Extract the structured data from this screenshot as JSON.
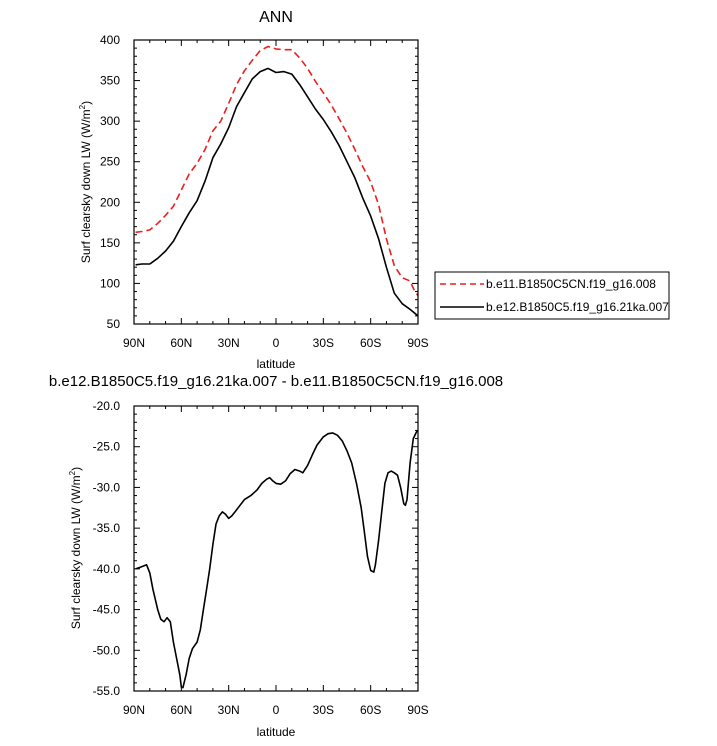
{
  "chart_data": [
    {
      "type": "line",
      "title": "ANN",
      "xlabel": "latitude",
      "ylabel": "Surf clearsky down LW (W/m",
      "ylabel_sup": "2",
      "ylabel_close": ")",
      "xlim": [
        90,
        -90
      ],
      "ylim": [
        50,
        400
      ],
      "x_ticks": [
        90,
        60,
        30,
        0,
        -30,
        -60,
        -90
      ],
      "x_tick_labels": [
        "90N",
        "60N",
        "30N",
        "0",
        "30S",
        "60S",
        "90S"
      ],
      "y_ticks": [
        50,
        100,
        150,
        200,
        250,
        300,
        350,
        400
      ],
      "y_tick_labels": [
        "50",
        "100",
        "150",
        "200",
        "250",
        "300",
        "350",
        "400"
      ],
      "legend_placement": "right-outside",
      "series": [
        {
          "name": "b.e11.B1850C5CN.f19_g16.008",
          "color": "#e8201e",
          "dash": "dashed",
          "points": [
            [
              89,
              163
            ],
            [
              85,
              164
            ],
            [
              80,
              166
            ],
            [
              75,
              174
            ],
            [
              70,
              184
            ],
            [
              65,
              195
            ],
            [
              60,
              215
            ],
            [
              55,
              235
            ],
            [
              50,
              248
            ],
            [
              45,
              265
            ],
            [
              40,
              288
            ],
            [
              35,
              300
            ],
            [
              30,
              322
            ],
            [
              25,
              345
            ],
            [
              20,
              362
            ],
            [
              15,
              375
            ],
            [
              10,
              387
            ],
            [
              5,
              392
            ],
            [
              0,
              389
            ],
            [
              -5,
              388
            ],
            [
              -10,
              388
            ],
            [
              -15,
              378
            ],
            [
              -20,
              365
            ],
            [
              -25,
              349
            ],
            [
              -30,
              335
            ],
            [
              -35,
              320
            ],
            [
              -40,
              303
            ],
            [
              -45,
              285
            ],
            [
              -50,
              265
            ],
            [
              -55,
              244
            ],
            [
              -60,
              225
            ],
            [
              -65,
              197
            ],
            [
              -70,
              155
            ],
            [
              -75,
              122
            ],
            [
              -80,
              107
            ],
            [
              -85,
              103
            ],
            [
              -88,
              90
            ],
            [
              -90,
              85
            ]
          ]
        },
        {
          "name": "b.e12.B1850C5.f19_g16.21ka.007",
          "color": "#000000",
          "dash": "solid",
          "points": [
            [
              89,
              123
            ],
            [
              85,
              124
            ],
            [
              80,
              124
            ],
            [
              75,
              131
            ],
            [
              70,
              140
            ],
            [
              65,
              152
            ],
            [
              60,
              170
            ],
            [
              55,
              187
            ],
            [
              50,
              202
            ],
            [
              45,
              226
            ],
            [
              40,
              255
            ],
            [
              35,
              272
            ],
            [
              30,
              292
            ],
            [
              25,
              318
            ],
            [
              20,
              335
            ],
            [
              15,
              352
            ],
            [
              10,
              361
            ],
            [
              5,
              365
            ],
            [
              0,
              360
            ],
            [
              -5,
              361
            ],
            [
              -10,
              358
            ],
            [
              -15,
              345
            ],
            [
              -20,
              330
            ],
            [
              -25,
              315
            ],
            [
              -30,
              302
            ],
            [
              -35,
              287
            ],
            [
              -40,
              270
            ],
            [
              -45,
              250
            ],
            [
              -50,
              230
            ],
            [
              -55,
              205
            ],
            [
              -60,
              183
            ],
            [
              -65,
              155
            ],
            [
              -70,
              120
            ],
            [
              -75,
              88
            ],
            [
              -80,
              75
            ],
            [
              -85,
              68
            ],
            [
              -90,
              60
            ]
          ]
        }
      ]
    },
    {
      "type": "line",
      "title": "b.e12.B1850C5.f19_g16.21ka.007 - b.e11.B1850C5CN.f19_g16.008",
      "xlabel": "latitude",
      "ylabel": "Surf clearsky down LW (W/m",
      "ylabel_sup": "2",
      "ylabel_close": ")",
      "xlim": [
        90,
        -90
      ],
      "ylim": [
        -55,
        -20
      ],
      "x_ticks": [
        90,
        60,
        30,
        0,
        -30,
        -60,
        -90
      ],
      "x_tick_labels": [
        "90N",
        "60N",
        "30N",
        "0",
        "30S",
        "60S",
        "90S"
      ],
      "y_ticks": [
        -55,
        -50,
        -45,
        -40,
        -35,
        -30,
        -25,
        -20
      ],
      "y_tick_labels": [
        "-55.0",
        "-50.0",
        "-45.0",
        "-40.0",
        "-35.0",
        "-30.0",
        "-25.0",
        "-20.0"
      ],
      "series": [
        {
          "color": "#000000",
          "dash": "solid",
          "points": [
            [
              89,
              -40
            ],
            [
              86,
              -39.8
            ],
            [
              82,
              -39.5
            ],
            [
              80,
              -40.5
            ],
            [
              78,
              -42.5
            ],
            [
              75,
              -45
            ],
            [
              73,
              -46.2
            ],
            [
              71,
              -46.5
            ],
            [
              69,
              -46
            ],
            [
              67,
              -46.5
            ],
            [
              65,
              -49
            ],
            [
              63,
              -51
            ],
            [
              61,
              -53
            ],
            [
              60,
              -54.5
            ],
            [
              59,
              -54.6
            ],
            [
              57,
              -53
            ],
            [
              55,
              -51
            ],
            [
              53,
              -49.8
            ],
            [
              50,
              -49
            ],
            [
              48,
              -47.5
            ],
            [
              46,
              -45
            ],
            [
              44,
              -42.5
            ],
            [
              42,
              -40
            ],
            [
              40,
              -37
            ],
            [
              38,
              -34.5
            ],
            [
              36,
              -33.5
            ],
            [
              34,
              -33
            ],
            [
              32,
              -33.3
            ],
            [
              30,
              -33.8
            ],
            [
              28,
              -33.5
            ],
            [
              26,
              -33
            ],
            [
              24,
              -32.5
            ],
            [
              20,
              -31.5
            ],
            [
              16,
              -31
            ],
            [
              12,
              -30.3
            ],
            [
              9,
              -29.5
            ],
            [
              6,
              -29
            ],
            [
              4,
              -28.8
            ],
            [
              2,
              -29.2
            ],
            [
              0,
              -29.5
            ],
            [
              -3,
              -29.6
            ],
            [
              -6,
              -29.2
            ],
            [
              -9,
              -28.3
            ],
            [
              -12,
              -27.8
            ],
            [
              -15,
              -28
            ],
            [
              -17,
              -28.2
            ],
            [
              -20,
              -27.3
            ],
            [
              -23,
              -26
            ],
            [
              -26,
              -24.8
            ],
            [
              -30,
              -23.8
            ],
            [
              -33,
              -23.4
            ],
            [
              -36,
              -23.3
            ],
            [
              -39,
              -23.6
            ],
            [
              -42,
              -24.3
            ],
            [
              -45,
              -25.5
            ],
            [
              -48,
              -27
            ],
            [
              -51,
              -29.5
            ],
            [
              -54,
              -32.5
            ],
            [
              -56,
              -35.5
            ],
            [
              -58,
              -38.5
            ],
            [
              -60,
              -40.2
            ],
            [
              -62,
              -40.4
            ],
            [
              -63,
              -39.5
            ],
            [
              -65,
              -36.5
            ],
            [
              -67,
              -33
            ],
            [
              -69,
              -29.5
            ],
            [
              -71,
              -28.2
            ],
            [
              -73,
              -28
            ],
            [
              -75,
              -28.2
            ],
            [
              -77,
              -28.5
            ],
            [
              -79,
              -30
            ],
            [
              -81,
              -32
            ],
            [
              -82,
              -32.2
            ],
            [
              -83,
              -31.5
            ],
            [
              -85,
              -27
            ],
            [
              -87,
              -24
            ],
            [
              -89,
              -23.2
            ],
            [
              -90,
              -23
            ]
          ]
        }
      ]
    }
  ]
}
